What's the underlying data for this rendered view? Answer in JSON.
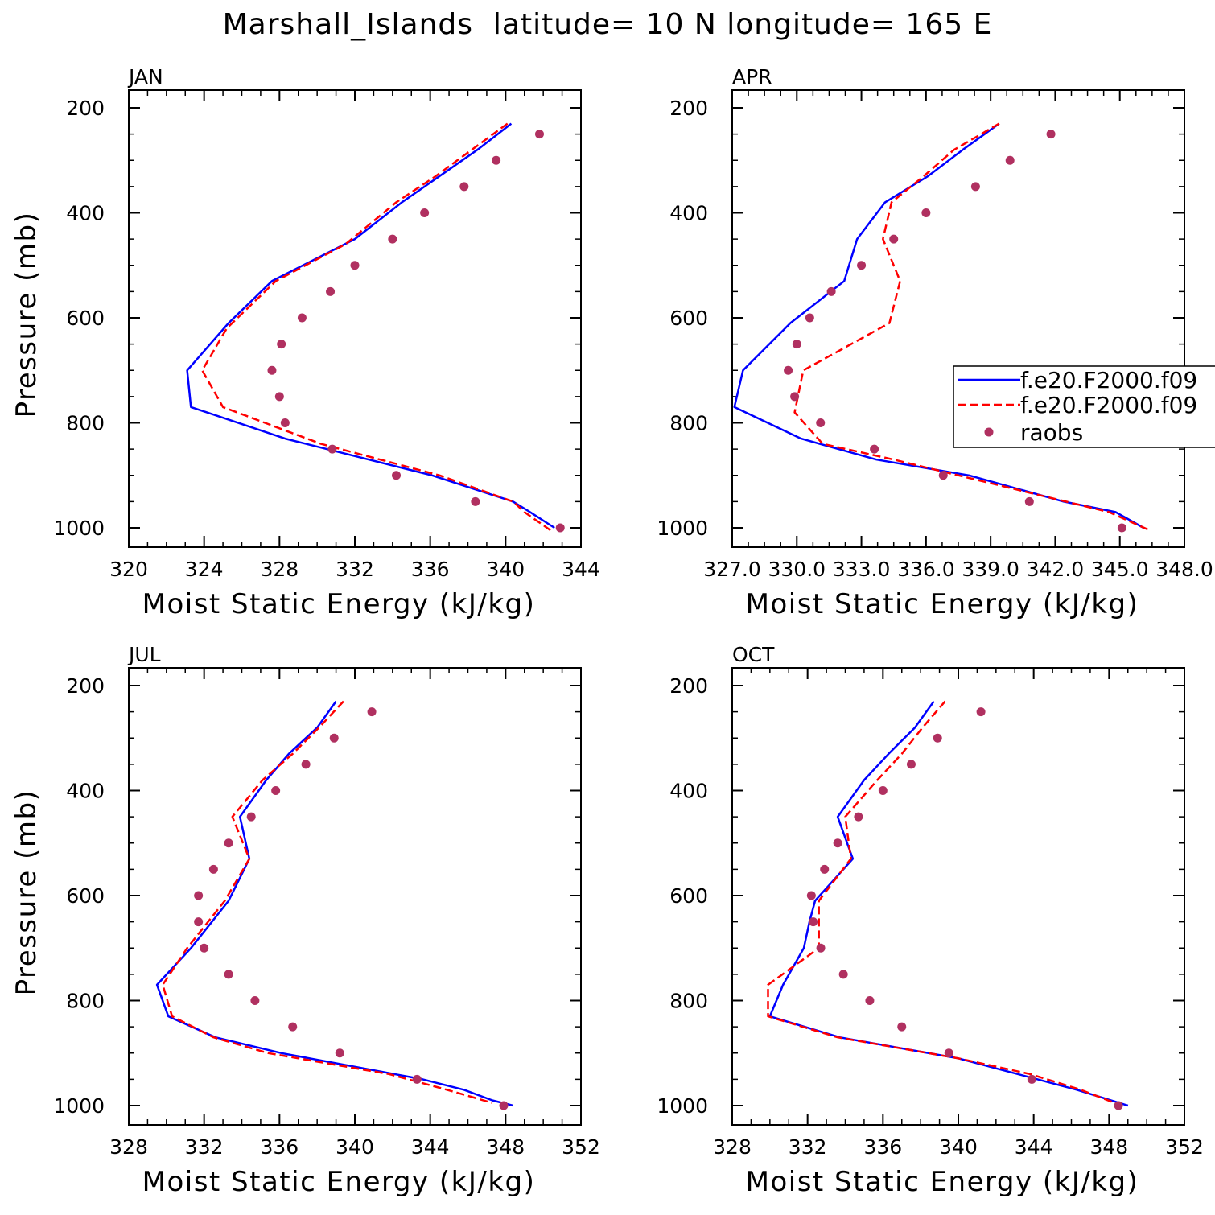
{
  "title": "Marshall_Islands  latitude= 10 N longitude= 165 E",
  "legend": {
    "entries": [
      {
        "label": "f.e20.F2000.f09",
        "style": "solid",
        "color": "#0000ff"
      },
      {
        "label": "f.e20.F2000.f09",
        "style": "dashed",
        "color": "#ff0000"
      },
      {
        "label": "raobs",
        "style": "marker",
        "color": "#b03060"
      }
    ]
  },
  "colors": {
    "series_solid": "#0000ff",
    "series_dashed": "#ff0000",
    "markers": "#b03060"
  },
  "chart_data": [
    {
      "type": "line",
      "panel_label": "JAN",
      "xlabel": "Moist Static Energy (kJ/kg)",
      "ylabel": "Pressure (mb)",
      "xlim": [
        320,
        344
      ],
      "ylim": [
        1000,
        200
      ],
      "xticks": [
        "320",
        "324",
        "328",
        "332",
        "336",
        "340",
        "344"
      ],
      "yticks": [
        "200",
        "400",
        "600",
        "800",
        "1000"
      ],
      "series": [
        {
          "style": "solid",
          "points": [
            [
              340.3,
              230
            ],
            [
              338.5,
              280
            ],
            [
              336.5,
              330
            ],
            [
              334.5,
              380
            ],
            [
              332,
              450
            ],
            [
              327.6,
              530
            ],
            [
              325.3,
              610
            ],
            [
              323.1,
              700
            ],
            [
              323.3,
              770
            ],
            [
              328.3,
              830
            ],
            [
              336.1,
              900
            ],
            [
              340.4,
              950
            ],
            [
              341.3,
              970
            ],
            [
              342.6,
              1000
            ]
          ]
        },
        {
          "style": "dashed",
          "points": [
            [
              340.1,
              230
            ],
            [
              338.2,
              280
            ],
            [
              336.3,
              330
            ],
            [
              334.2,
              380
            ],
            [
              331.5,
              460
            ],
            [
              327.8,
              530
            ],
            [
              325.2,
              620
            ],
            [
              323.9,
              700
            ],
            [
              325,
              770
            ],
            [
              330.2,
              840
            ],
            [
              336.5,
              900
            ],
            [
              340.4,
              950
            ],
            [
              341,
              970
            ],
            [
              342.4,
              1005
            ]
          ]
        },
        {
          "style": "marker",
          "points": [
            [
              341.8,
              250
            ],
            [
              339.5,
              300
            ],
            [
              337.8,
              350
            ],
            [
              335.7,
              400
            ],
            [
              334,
              450
            ],
            [
              332,
              500
            ],
            [
              330.7,
              550
            ],
            [
              329.2,
              600
            ],
            [
              328.1,
              650
            ],
            [
              327.6,
              700
            ],
            [
              328,
              750
            ],
            [
              328.3,
              800
            ],
            [
              330.8,
              850
            ],
            [
              334.2,
              900
            ],
            [
              338.4,
              950
            ],
            [
              342.9,
              1000
            ]
          ]
        }
      ]
    },
    {
      "type": "line",
      "panel_label": "APR",
      "xlabel": "Moist Static Energy (kJ/kg)",
      "ylabel": "",
      "xlim": [
        327,
        348
      ],
      "ylim": [
        1000,
        200
      ],
      "xticks": [
        "327.0",
        "330.0",
        "333.0",
        "336.0",
        "339.0",
        "342.0",
        "345.0",
        "348.0"
      ],
      "yticks": [
        "200",
        "400",
        "600",
        "800",
        "1000"
      ],
      "series": [
        {
          "style": "solid",
          "points": [
            [
              339.4,
              230
            ],
            [
              337.7,
              280
            ],
            [
              336.1,
              330
            ],
            [
              334.1,
              380
            ],
            [
              332.8,
              450
            ],
            [
              332.2,
              530
            ],
            [
              329.7,
              610
            ],
            [
              327.5,
              700
            ],
            [
              327.1,
              770
            ],
            [
              330.2,
              830
            ],
            [
              333.7,
              870
            ],
            [
              338,
              900
            ],
            [
              342.4,
              950
            ],
            [
              344.8,
              970
            ],
            [
              346.1,
              1000
            ]
          ]
        },
        {
          "style": "dashed",
          "points": [
            [
              339.4,
              230
            ],
            [
              337.3,
              280
            ],
            [
              335.9,
              330
            ],
            [
              334.4,
              380
            ],
            [
              334,
              450
            ],
            [
              334.8,
              530
            ],
            [
              334.3,
              610
            ],
            [
              330.3,
              700
            ],
            [
              329.9,
              780
            ],
            [
              331.2,
              840
            ],
            [
              334.5,
              870
            ],
            [
              340.5,
              930
            ],
            [
              344.5,
              970
            ],
            [
              346.4,
              1005
            ]
          ]
        },
        {
          "style": "marker",
          "points": [
            [
              341.8,
              250
            ],
            [
              339.9,
              300
            ],
            [
              338.3,
              350
            ],
            [
              336,
              400
            ],
            [
              334.5,
              450
            ],
            [
              333,
              500
            ],
            [
              331.6,
              550
            ],
            [
              330.6,
              600
            ],
            [
              330,
              650
            ],
            [
              329.6,
              700
            ],
            [
              329.9,
              750
            ],
            [
              331.1,
              800
            ],
            [
              333.6,
              850
            ],
            [
              336.8,
              900
            ],
            [
              340.8,
              950
            ],
            [
              345.1,
              1000
            ]
          ]
        }
      ]
    },
    {
      "type": "line",
      "panel_label": "JUL",
      "xlabel": "Moist Static Energy (kJ/kg)",
      "ylabel": "Pressure (mb)",
      "xlim": [
        328,
        352
      ],
      "ylim": [
        1000,
        200
      ],
      "xticks": [
        "328",
        "332",
        "336",
        "340",
        "344",
        "348",
        "352"
      ],
      "yticks": [
        "200",
        "400",
        "600",
        "800",
        "1000"
      ],
      "series": [
        {
          "style": "solid",
          "points": [
            [
              339,
              230
            ],
            [
              338,
              280
            ],
            [
              336.5,
              330
            ],
            [
              335.3,
              380
            ],
            [
              333.9,
              450
            ],
            [
              334.4,
              530
            ],
            [
              333.3,
              610
            ],
            [
              331.3,
              700
            ],
            [
              329.5,
              770
            ],
            [
              330.1,
              830
            ],
            [
              332.6,
              870
            ],
            [
              336.1,
              900
            ],
            [
              343.6,
              950
            ],
            [
              345.8,
              970
            ],
            [
              347.3,
              990
            ],
            [
              348.4,
              1000
            ]
          ]
        },
        {
          "style": "dashed",
          "points": [
            [
              339.4,
              230
            ],
            [
              338.1,
              280
            ],
            [
              336.7,
              330
            ],
            [
              335.1,
              380
            ],
            [
              333.5,
              450
            ],
            [
              334.4,
              530
            ],
            [
              333.1,
              610
            ],
            [
              331.1,
              700
            ],
            [
              329.8,
              770
            ],
            [
              330.3,
              830
            ],
            [
              332.5,
              870
            ],
            [
              335.4,
              900
            ],
            [
              341.8,
              940
            ],
            [
              344.9,
              970
            ],
            [
              347.3,
              995
            ]
          ]
        },
        {
          "style": "marker",
          "points": [
            [
              340.9,
              250
            ],
            [
              338.9,
              300
            ],
            [
              337.4,
              350
            ],
            [
              335.8,
              400
            ],
            [
              334.5,
              450
            ],
            [
              333.3,
              500
            ],
            [
              332.5,
              550
            ],
            [
              331.7,
              600
            ],
            [
              331.7,
              650
            ],
            [
              332,
              700
            ],
            [
              333.3,
              750
            ],
            [
              334.7,
              800
            ],
            [
              336.7,
              850
            ],
            [
              339.2,
              900
            ],
            [
              343.3,
              950
            ],
            [
              347.9,
              1000
            ]
          ]
        }
      ]
    },
    {
      "type": "line",
      "panel_label": "OCT",
      "xlabel": "Moist Static Energy (kJ/kg)",
      "ylabel": "",
      "xlim": [
        328,
        352
      ],
      "ylim": [
        1000,
        200
      ],
      "xticks": [
        "328",
        "332",
        "336",
        "340",
        "344",
        "348",
        "352"
      ],
      "yticks": [
        "200",
        "400",
        "600",
        "800",
        "1000"
      ],
      "series": [
        {
          "style": "solid",
          "points": [
            [
              338.7,
              230
            ],
            [
              337.7,
              280
            ],
            [
              336.3,
              330
            ],
            [
              335,
              380
            ],
            [
              333.6,
              450
            ],
            [
              334.4,
              530
            ],
            [
              332.4,
              610
            ],
            [
              332.1,
              650
            ],
            [
              331.8,
              700
            ],
            [
              330.7,
              770
            ],
            [
              330,
              830
            ],
            [
              333.7,
              870
            ],
            [
              340,
              910
            ],
            [
              346.3,
              970
            ],
            [
              349,
              1000
            ]
          ]
        },
        {
          "style": "dashed",
          "points": [
            [
              339.3,
              230
            ],
            [
              338.1,
              280
            ],
            [
              337,
              330
            ],
            [
              335.7,
              380
            ],
            [
              334,
              450
            ],
            [
              334.3,
              530
            ],
            [
              332.6,
              610
            ],
            [
              332.6,
              700
            ],
            [
              329.9,
              770
            ],
            [
              329.9,
              830
            ],
            [
              333.6,
              870
            ],
            [
              340,
              910
            ],
            [
              343.8,
              940
            ],
            [
              346.5,
              970
            ],
            [
              348.3,
              995
            ]
          ]
        },
        {
          "style": "marker",
          "points": [
            [
              341.2,
              250
            ],
            [
              338.9,
              300
            ],
            [
              337.5,
              350
            ],
            [
              336,
              400
            ],
            [
              334.7,
              450
            ],
            [
              333.6,
              500
            ],
            [
              332.9,
              550
            ],
            [
              332.2,
              600
            ],
            [
              332.3,
              650
            ],
            [
              332.7,
              700
            ],
            [
              333.9,
              750
            ],
            [
              335.3,
              800
            ],
            [
              337,
              850
            ],
            [
              339.5,
              900
            ],
            [
              343.9,
              950
            ],
            [
              348.5,
              1000
            ]
          ]
        }
      ]
    }
  ]
}
